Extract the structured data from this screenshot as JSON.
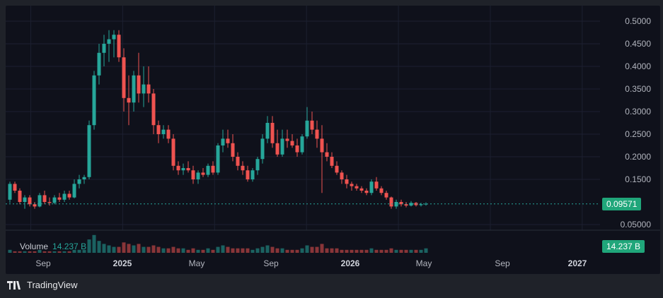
{
  "footer": {
    "brand": "TradingView",
    "logo": "tradingview-logo"
  },
  "volume_legend": {
    "label": "Volume",
    "value": "14.237 B"
  },
  "price_axis": {
    "ticks": [
      "0.5000",
      "0.4500",
      "0.4000",
      "0.3500",
      "0.3000",
      "0.2500",
      "0.2000",
      "0.1500",
      "0.05000"
    ],
    "current_price": "0.09571"
  },
  "volume_axis": {
    "current_volume": "14.237 B"
  },
  "time_axis": {
    "labels": [
      "Sep",
      "2025",
      "May",
      "Sep",
      "2026",
      "May",
      "Sep",
      "2027"
    ]
  },
  "colors": {
    "up": "#26a69a",
    "down": "#ef5350",
    "background": "#0f111b",
    "badge": "#20a67a"
  },
  "chart_data": {
    "type": "candlestick",
    "y_range": [
      0.03,
      0.52
    ],
    "log_scale": false,
    "grid": true,
    "x_start_month": "2024-08",
    "candles": [
      [
        0.105,
        0.145,
        0.098,
        0.14
      ],
      [
        0.14,
        0.145,
        0.12,
        0.125
      ],
      [
        0.125,
        0.13,
        0.095,
        0.1
      ],
      [
        0.1,
        0.115,
        0.085,
        0.11
      ],
      [
        0.11,
        0.115,
        0.09,
        0.095
      ],
      [
        0.095,
        0.1,
        0.085,
        0.09
      ],
      [
        0.09,
        0.12,
        0.088,
        0.115
      ],
      [
        0.115,
        0.125,
        0.095,
        0.1
      ],
      [
        0.1,
        0.11,
        0.092,
        0.098
      ],
      [
        0.098,
        0.115,
        0.095,
        0.11
      ],
      [
        0.11,
        0.12,
        0.1,
        0.105
      ],
      [
        0.105,
        0.125,
        0.1,
        0.118
      ],
      [
        0.118,
        0.125,
        0.105,
        0.11
      ],
      [
        0.11,
        0.15,
        0.108,
        0.14
      ],
      [
        0.14,
        0.16,
        0.13,
        0.15
      ],
      [
        0.15,
        0.16,
        0.14,
        0.155
      ],
      [
        0.155,
        0.28,
        0.15,
        0.27
      ],
      [
        0.27,
        0.39,
        0.26,
        0.38
      ],
      [
        0.38,
        0.45,
        0.36,
        0.43
      ],
      [
        0.43,
        0.47,
        0.4,
        0.45
      ],
      [
        0.45,
        0.48,
        0.41,
        0.46
      ],
      [
        0.46,
        0.48,
        0.42,
        0.47
      ],
      [
        0.47,
        0.48,
        0.41,
        0.42
      ],
      [
        0.42,
        0.44,
        0.3,
        0.33
      ],
      [
        0.33,
        0.38,
        0.27,
        0.32
      ],
      [
        0.32,
        0.39,
        0.3,
        0.38
      ],
      [
        0.38,
        0.43,
        0.32,
        0.34
      ],
      [
        0.34,
        0.4,
        0.31,
        0.36
      ],
      [
        0.36,
        0.4,
        0.32,
        0.34
      ],
      [
        0.34,
        0.35,
        0.25,
        0.27
      ],
      [
        0.27,
        0.28,
        0.23,
        0.25
      ],
      [
        0.25,
        0.27,
        0.24,
        0.26
      ],
      [
        0.26,
        0.27,
        0.23,
        0.24
      ],
      [
        0.24,
        0.25,
        0.17,
        0.18
      ],
      [
        0.18,
        0.19,
        0.16,
        0.17
      ],
      [
        0.17,
        0.185,
        0.16,
        0.175
      ],
      [
        0.175,
        0.19,
        0.165,
        0.17
      ],
      [
        0.17,
        0.18,
        0.14,
        0.15
      ],
      [
        0.15,
        0.17,
        0.14,
        0.165
      ],
      [
        0.165,
        0.175,
        0.155,
        0.16
      ],
      [
        0.16,
        0.185,
        0.155,
        0.18
      ],
      [
        0.18,
        0.19,
        0.16,
        0.165
      ],
      [
        0.165,
        0.23,
        0.16,
        0.225
      ],
      [
        0.225,
        0.26,
        0.21,
        0.24
      ],
      [
        0.24,
        0.26,
        0.22,
        0.23
      ],
      [
        0.23,
        0.25,
        0.19,
        0.2
      ],
      [
        0.2,
        0.21,
        0.17,
        0.18
      ],
      [
        0.18,
        0.19,
        0.16,
        0.17
      ],
      [
        0.17,
        0.18,
        0.145,
        0.15
      ],
      [
        0.15,
        0.175,
        0.145,
        0.17
      ],
      [
        0.17,
        0.2,
        0.16,
        0.195
      ],
      [
        0.195,
        0.25,
        0.185,
        0.24
      ],
      [
        0.24,
        0.29,
        0.23,
        0.275
      ],
      [
        0.275,
        0.29,
        0.22,
        0.23
      ],
      [
        0.23,
        0.26,
        0.2,
        0.205
      ],
      [
        0.205,
        0.26,
        0.2,
        0.24
      ],
      [
        0.24,
        0.26,
        0.22,
        0.235
      ],
      [
        0.235,
        0.25,
        0.22,
        0.225
      ],
      [
        0.225,
        0.24,
        0.2,
        0.21
      ],
      [
        0.21,
        0.25,
        0.205,
        0.245
      ],
      [
        0.245,
        0.31,
        0.24,
        0.28
      ],
      [
        0.28,
        0.3,
        0.25,
        0.26
      ],
      [
        0.26,
        0.28,
        0.22,
        0.24
      ],
      [
        0.24,
        0.27,
        0.12,
        0.21
      ],
      [
        0.21,
        0.23,
        0.19,
        0.2
      ],
      [
        0.2,
        0.21,
        0.175,
        0.18
      ],
      [
        0.18,
        0.19,
        0.16,
        0.165
      ],
      [
        0.165,
        0.17,
        0.14,
        0.15
      ],
      [
        0.15,
        0.16,
        0.13,
        0.14
      ],
      [
        0.14,
        0.145,
        0.125,
        0.135
      ],
      [
        0.135,
        0.14,
        0.125,
        0.13
      ],
      [
        0.13,
        0.135,
        0.12,
        0.125
      ],
      [
        0.125,
        0.13,
        0.115,
        0.12
      ],
      [
        0.12,
        0.15,
        0.115,
        0.145
      ],
      [
        0.145,
        0.155,
        0.125,
        0.13
      ],
      [
        0.13,
        0.135,
        0.115,
        0.12
      ],
      [
        0.12,
        0.125,
        0.105,
        0.11
      ],
      [
        0.11,
        0.112,
        0.085,
        0.09
      ],
      [
        0.09,
        0.105,
        0.085,
        0.1
      ],
      [
        0.1,
        0.105,
        0.09,
        0.095
      ],
      [
        0.095,
        0.1,
        0.088,
        0.092
      ],
      [
        0.092,
        0.102,
        0.09,
        0.098
      ],
      [
        0.098,
        0.1,
        0.09,
        0.093
      ],
      [
        0.093,
        0.098,
        0.09,
        0.095
      ],
      [
        0.095,
        0.099,
        0.092,
        0.096
      ]
    ],
    "volume": [
      2,
      1,
      1,
      1,
      1,
      1,
      2,
      1,
      1,
      1,
      1,
      1,
      1,
      2,
      2,
      2,
      9,
      12,
      8,
      6,
      5,
      4,
      4,
      7,
      6,
      5,
      6,
      4,
      4,
      5,
      4,
      3,
      3,
      4,
      3,
      3,
      2,
      3,
      2,
      2,
      3,
      2,
      4,
      5,
      4,
      3,
      3,
      3,
      3,
      2,
      3,
      4,
      5,
      4,
      3,
      3,
      2,
      2,
      2,
      3,
      5,
      4,
      4,
      6,
      3,
      3,
      3,
      2,
      2,
      2,
      2,
      2,
      2,
      3,
      2,
      2,
      2,
      3,
      2,
      2,
      2,
      2,
      2,
      2,
      3
    ],
    "current_price": 0.09571,
    "volume_last": "14.237 B"
  }
}
